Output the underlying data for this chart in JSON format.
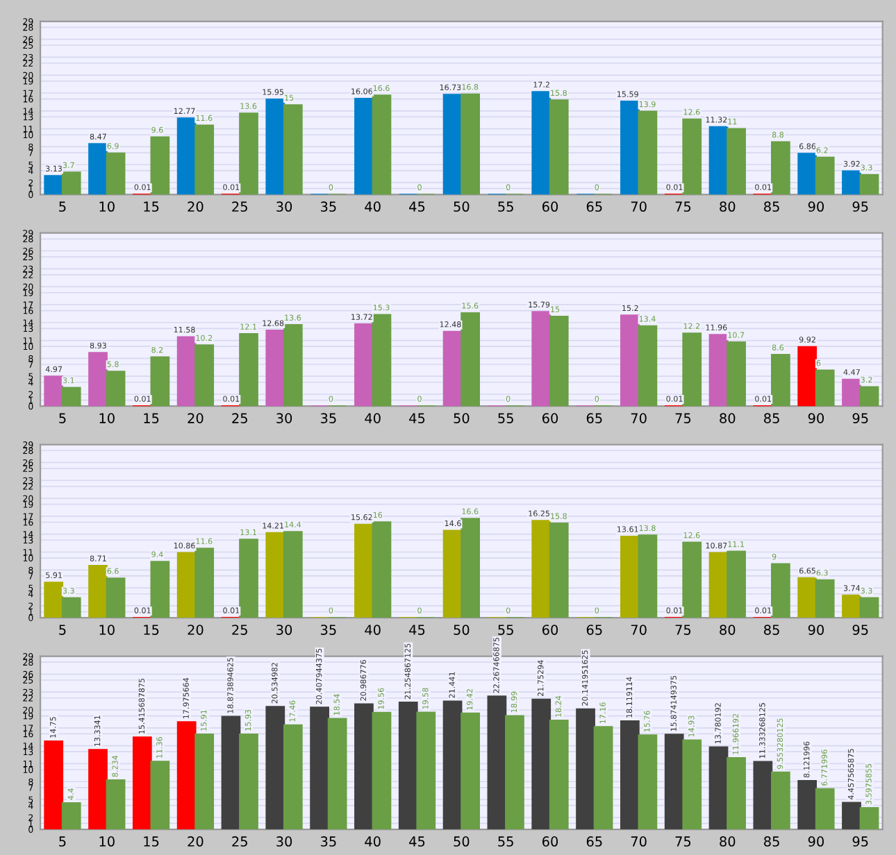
{
  "chart_data": [
    {
      "type": "bar",
      "categories": [
        "5",
        "10",
        "15",
        "20",
        "25",
        "30",
        "35",
        "40",
        "45",
        "50",
        "55",
        "60",
        "65",
        "70",
        "75",
        "80",
        "85",
        "90",
        "95"
      ],
      "ylim": [
        0,
        29
      ],
      "yticks": [
        0,
        1,
        2,
        4,
        5,
        7,
        8,
        10,
        11,
        13,
        14,
        16,
        17,
        19,
        20,
        22,
        23,
        25,
        26,
        28,
        29
      ],
      "grid": "y",
      "series": [
        {
          "colors": [
            "#0080cc",
            "#0080cc",
            "#ff0000",
            "#0080cc",
            "#ff0000",
            "#0080cc",
            "#0080cc",
            "#0080cc",
            "#0080cc",
            "#0080cc",
            "#0080cc",
            "#0080cc",
            "#0080cc",
            "#0080cc",
            "#ff0000",
            "#0080cc",
            "#ff0000",
            "#0080cc",
            "#0080cc"
          ],
          "values": [
            3.13,
            8.47,
            0.01,
            12.77,
            0.01,
            15.95,
            0,
            16.06,
            0,
            16.73,
            0,
            17.2,
            0,
            15.59,
            0.01,
            11.32,
            0.01,
            6.86,
            3.92
          ],
          "value_labels": [
            "3.13",
            "8.47",
            "0.01",
            "12.77",
            "0.01",
            "15.95",
            null,
            "16.06",
            null,
            "16.73",
            null,
            "17.2",
            null,
            "15.59",
            "0.01",
            "11.32",
            "0.01",
            "6.86",
            "3.92"
          ]
        },
        {
          "color": "#6a9f46",
          "values": [
            3.7,
            6.9,
            9.6,
            11.6,
            13.6,
            15,
            0,
            16.6,
            0,
            16.8,
            0,
            15.8,
            0,
            13.9,
            12.6,
            11,
            8.8,
            6.2,
            3.3
          ],
          "value_labels": [
            "3.7",
            "6.9",
            "9.6",
            "11.6",
            "13.6",
            "15",
            "0",
            "16.6",
            "0",
            "16.8",
            "0",
            "15.8",
            "0",
            "13.9",
            "12.6",
            "11",
            "8.8",
            "6.2",
            "3.3"
          ]
        }
      ]
    },
    {
      "type": "bar",
      "categories": [
        "5",
        "10",
        "15",
        "20",
        "25",
        "30",
        "35",
        "40",
        "45",
        "50",
        "55",
        "60",
        "65",
        "70",
        "75",
        "80",
        "85",
        "90",
        "95"
      ],
      "ylim": [
        0,
        29
      ],
      "yticks": [
        0,
        1,
        2,
        4,
        5,
        7,
        8,
        10,
        11,
        13,
        14,
        16,
        17,
        19,
        20,
        22,
        23,
        25,
        26,
        28,
        29
      ],
      "grid": "y",
      "series": [
        {
          "colors": [
            "#c862b8",
            "#c862b8",
            "#ff0000",
            "#c862b8",
            "#ff0000",
            "#c862b8",
            "#c862b8",
            "#c862b8",
            "#c862b8",
            "#c862b8",
            "#c862b8",
            "#c862b8",
            "#c862b8",
            "#c862b8",
            "#ff0000",
            "#c862b8",
            "#ff0000",
            "#ff0000",
            "#c862b8"
          ],
          "values": [
            4.97,
            8.93,
            0.01,
            11.58,
            0.01,
            12.68,
            0,
            13.72,
            0,
            12.48,
            0,
            15.79,
            0,
            15.2,
            0.01,
            11.96,
            0.01,
            9.92,
            4.47
          ],
          "value_labels": [
            "4.97",
            "8.93",
            "0.01",
            "11.58",
            "0.01",
            "12.68",
            null,
            "13.72",
            null,
            "12.48",
            null,
            "15.79",
            null,
            "15.2",
            "0.01",
            "11.96",
            "0.01",
            "9.92",
            "4.47"
          ]
        },
        {
          "color": "#6a9f46",
          "values": [
            3.1,
            5.8,
            8.2,
            10.2,
            12.1,
            13.6,
            0,
            15.3,
            0,
            15.6,
            0,
            15,
            0,
            13.4,
            12.2,
            10.7,
            8.6,
            6,
            3.2
          ],
          "value_labels": [
            "3.1",
            "5.8",
            "8.2",
            "10.2",
            "12.1",
            "13.6",
            "0",
            "15.3",
            "0",
            "15.6",
            "0",
            "15",
            "0",
            "13.4",
            "12.2",
            "10.7",
            "8.6",
            "6",
            "3.2"
          ]
        }
      ]
    },
    {
      "type": "bar",
      "categories": [
        "5",
        "10",
        "15",
        "20",
        "25",
        "30",
        "35",
        "40",
        "45",
        "50",
        "55",
        "60",
        "65",
        "70",
        "75",
        "80",
        "85",
        "90",
        "95"
      ],
      "ylim": [
        0,
        29
      ],
      "yticks": [
        0,
        1,
        2,
        4,
        5,
        7,
        8,
        10,
        11,
        13,
        14,
        16,
        17,
        19,
        20,
        22,
        23,
        25,
        26,
        28,
        29
      ],
      "grid": "y",
      "series": [
        {
          "colors": [
            "#adaf00",
            "#adaf00",
            "#ff0000",
            "#adaf00",
            "#ff0000",
            "#adaf00",
            "#adaf00",
            "#adaf00",
            "#adaf00",
            "#adaf00",
            "#adaf00",
            "#adaf00",
            "#adaf00",
            "#adaf00",
            "#ff0000",
            "#adaf00",
            "#ff0000",
            "#adaf00",
            "#adaf00"
          ],
          "values": [
            5.91,
            8.71,
            0.01,
            10.86,
            0.01,
            14.21,
            0,
            15.62,
            0,
            14.6,
            0,
            16.25,
            0,
            13.61,
            0.01,
            10.87,
            0.01,
            6.65,
            3.74
          ],
          "value_labels": [
            "5.91",
            "8.71",
            "0.01",
            "10.86",
            "0.01",
            "14.21",
            null,
            "15.62",
            null,
            "14.6",
            null,
            "16.25",
            null,
            "13.61",
            "0.01",
            "10.87",
            "0.01",
            "6.65",
            "3.74"
          ]
        },
        {
          "color": "#6a9f46",
          "values": [
            3.3,
            6.6,
            9.4,
            11.6,
            13.1,
            14.4,
            0,
            16,
            0,
            16.6,
            0,
            15.8,
            0,
            13.8,
            12.6,
            11.1,
            9,
            6.3,
            3.3
          ],
          "value_labels": [
            "3.3",
            "6.6",
            "9.4",
            "11.6",
            "13.1",
            "14.4",
            "0",
            "16",
            "0",
            "16.6",
            "0",
            "15.8",
            "0",
            "13.8",
            "12.6",
            "11.1",
            "9",
            "6.3",
            "3.3"
          ]
        }
      ]
    },
    {
      "type": "bar",
      "categories": [
        "5",
        "10",
        "15",
        "20",
        "25",
        "30",
        "35",
        "40",
        "45",
        "50",
        "55",
        "60",
        "65",
        "70",
        "75",
        "80",
        "85",
        "90",
        "95"
      ],
      "ylim": [
        0,
        29
      ],
      "yticks": [
        0,
        1,
        2,
        4,
        5,
        7,
        8,
        10,
        11,
        13,
        14,
        16,
        17,
        19,
        20,
        22,
        23,
        25,
        26,
        28,
        29
      ],
      "grid": "y",
      "series": [
        {
          "colors": [
            "#ff0000",
            "#ff0000",
            "#ff0000",
            "#ff0000",
            "#404040",
            "#404040",
            "#404040",
            "#404040",
            "#404040",
            "#404040",
            "#404040",
            "#404040",
            "#404040",
            "#404040",
            "#404040",
            "#404040",
            "#404040",
            "#404040",
            "#404040"
          ],
          "values": [
            14.75,
            13.3341,
            15.415687875,
            17.975664,
            18.873894625,
            20.534982,
            20.407944375,
            20.986776,
            21.254867125,
            21.441,
            22.267466875,
            21.75294,
            20.141951625,
            18.119114,
            15.874149375,
            13.780192,
            11.333268125,
            8.121996,
            4.457565875
          ],
          "value_labels": [
            "14.75",
            "13.3341",
            "15.415687875",
            "17.975664",
            "18.873894625",
            "20.534982",
            "20.407944375",
            "20.986776",
            "21.254867125",
            "21.441",
            "22.267466875",
            "21.75294",
            "20.141951625",
            "18.119114",
            "15.874149375",
            "13.780192",
            "11.333268125",
            "8.121996",
            "4.457565875"
          ]
        },
        {
          "color": "#6a9f46",
          "values": [
            4.4,
            8.234,
            11.36,
            15.91,
            15.93,
            17.46,
            18.54,
            19.56,
            19.58,
            19.42,
            18.99,
            18.24,
            17.16,
            15.76,
            14.93,
            11.966192,
            9.553280125,
            6.771996,
            3.5975855
          ],
          "value_labels": [
            "4.4",
            "8.234",
            "11.36",
            "15.91",
            "15.93",
            "17.46",
            "18.54",
            "19.56",
            "19.58",
            "19.42",
            "18.99",
            "18.24",
            "17.16",
            "15.76",
            "14.93",
            "11.966192",
            "9.553280125",
            "6.771996",
            "3.5975855"
          ]
        }
      ]
    }
  ]
}
